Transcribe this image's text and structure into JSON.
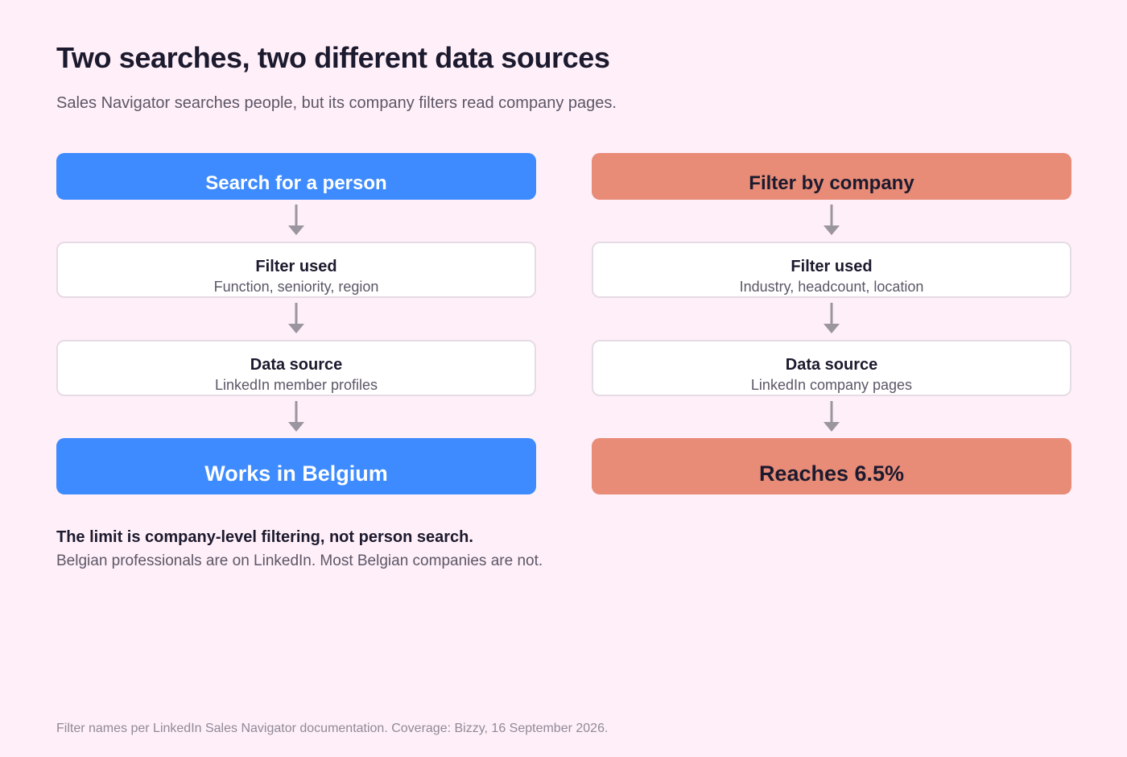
{
  "title": "Two searches, two different data sources",
  "subtitle": "Sales Navigator searches people, but its company filters read company pages.",
  "colors": {
    "background": "#ffeff8",
    "person_accent": "#3e8bff",
    "company_accent": "#e88b77",
    "arrow": "#9a959f",
    "box_border": "#e5dbe4"
  },
  "left_column": {
    "heading": "Search for a person",
    "filter": {
      "label": "Filter used",
      "value": "Function, seniority, region"
    },
    "source": {
      "label": "Data source",
      "value": "LinkedIn member profiles"
    },
    "outcome": "Works in Belgium"
  },
  "right_column": {
    "heading": "Filter by company",
    "filter": {
      "label": "Filter used",
      "value": "Industry, headcount, location"
    },
    "source": {
      "label": "Data source",
      "value": "LinkedIn company pages"
    },
    "outcome": "Reaches 6.5%"
  },
  "takeaway": {
    "heading": "The limit is company-level filtering, not person search.",
    "text": "Belgian professionals are on LinkedIn. Most Belgian companies are not."
  },
  "footnote": "Filter names per LinkedIn Sales Navigator documentation. Coverage: Bizzy, 16 September 2026."
}
